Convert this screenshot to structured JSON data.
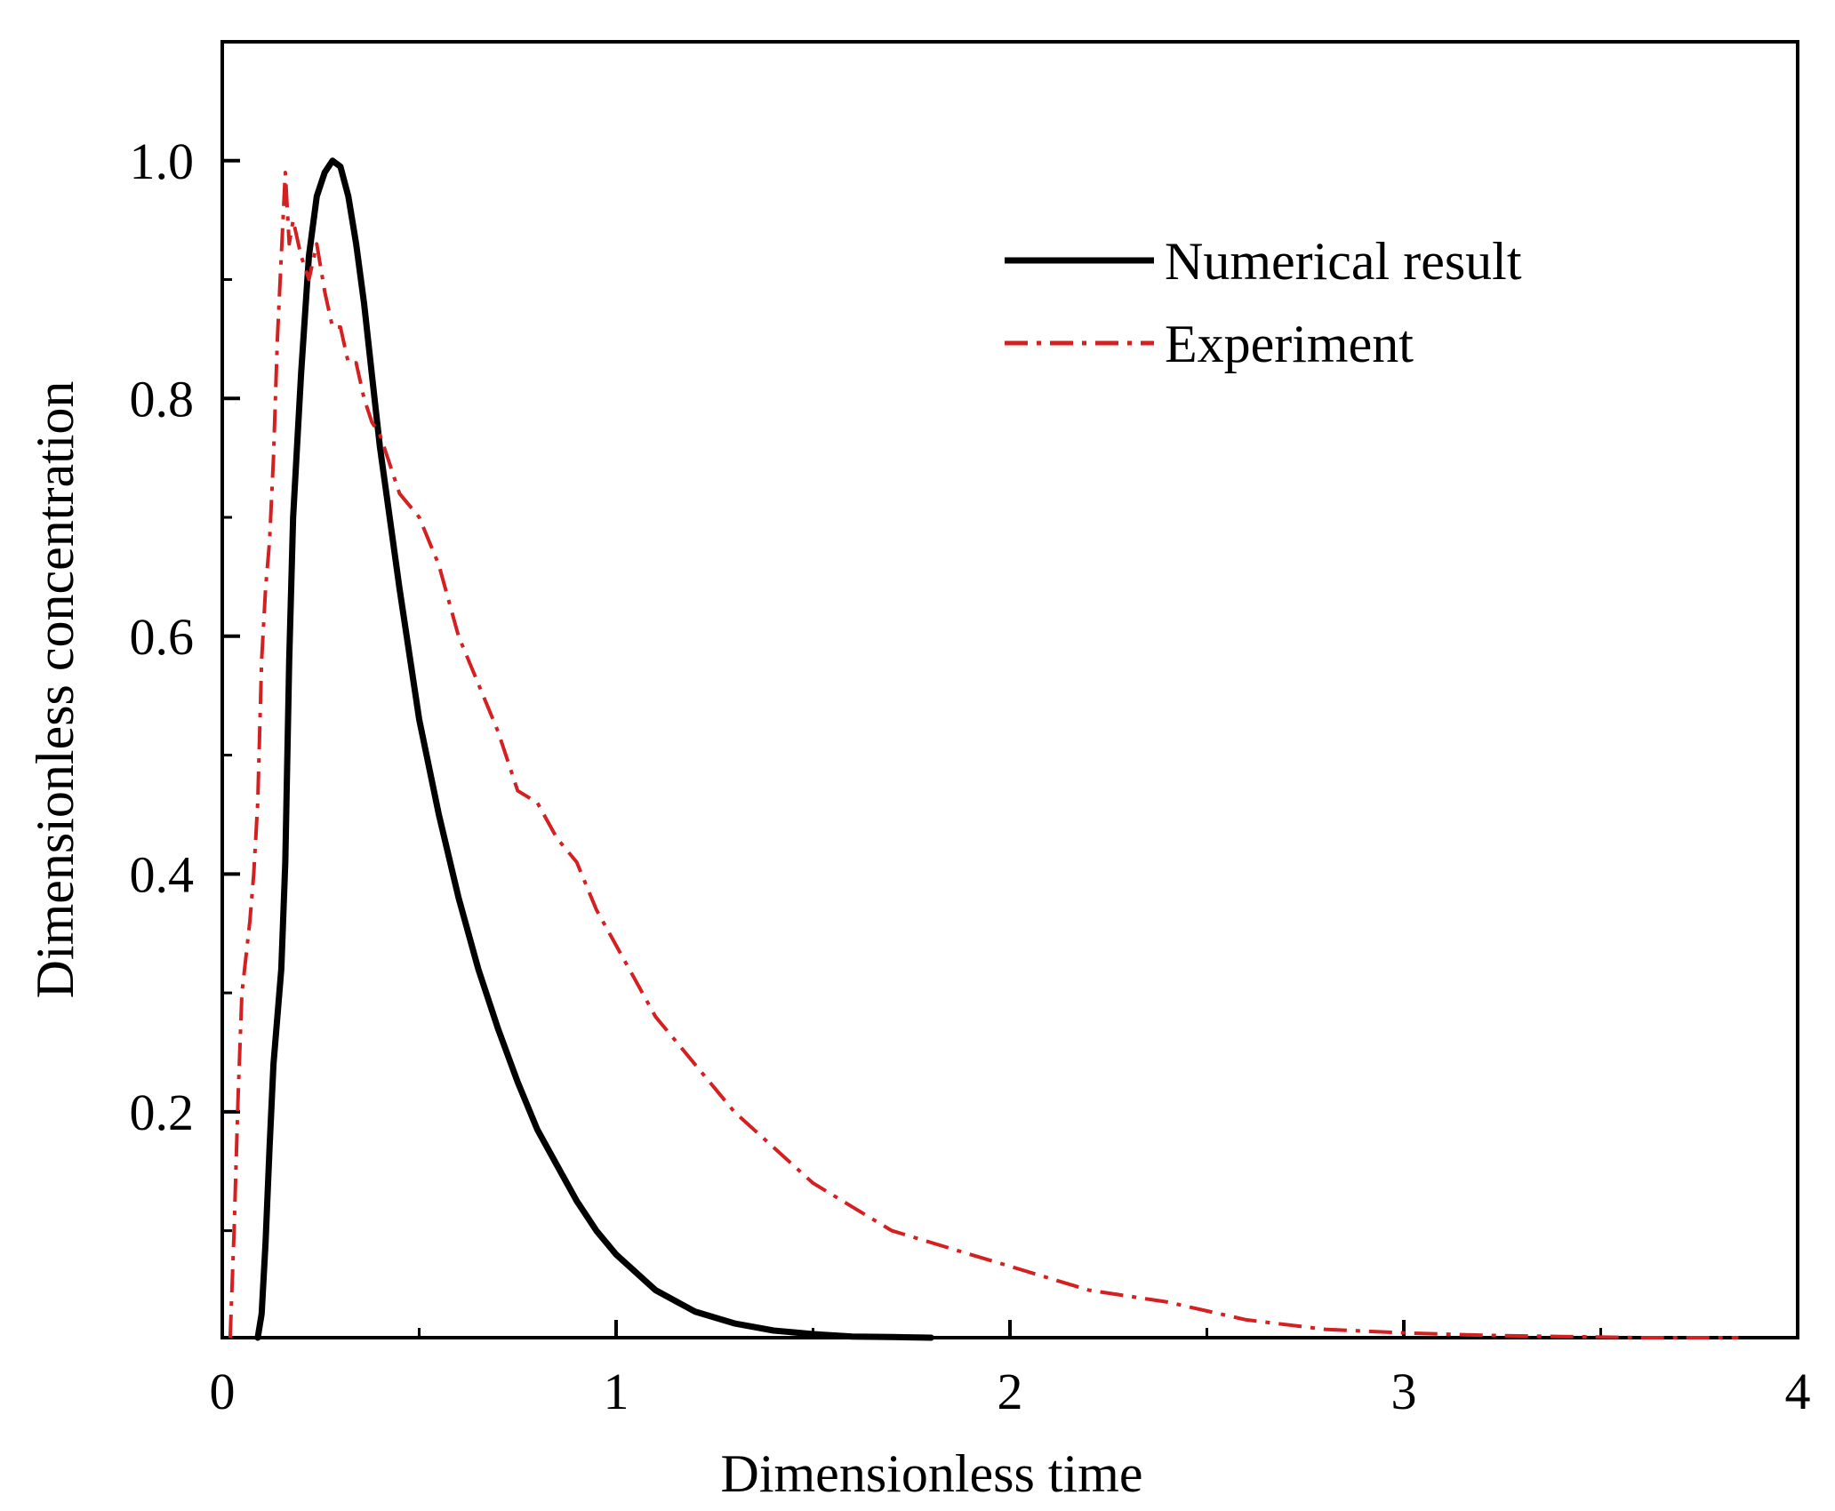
{
  "chart_data": {
    "type": "line",
    "title": "",
    "xlabel": "Dimensionless time",
    "ylabel": "Dimensionless concentration",
    "xlim": [
      0,
      4
    ],
    "ylim": [
      0.01,
      1.1
    ],
    "xticks": [
      0,
      1,
      2,
      3,
      4
    ],
    "xtick_labels": [
      "0",
      "1",
      "2",
      "3",
      "4"
    ],
    "yticks": [
      0.2,
      0.4,
      0.6,
      0.8,
      1.0
    ],
    "ytick_labels": [
      "0.2",
      "0.4",
      "0.6",
      "0.8",
      "1.0"
    ],
    "grid": false,
    "legend_position": "top-right",
    "series": [
      {
        "name": "Numerical result",
        "color": "#000000",
        "style": "solid",
        "x": [
          0.09,
          0.1,
          0.11,
          0.12,
          0.13,
          0.14,
          0.15,
          0.16,
          0.17,
          0.18,
          0.2,
          0.22,
          0.24,
          0.26,
          0.28,
          0.3,
          0.32,
          0.34,
          0.36,
          0.38,
          0.4,
          0.45,
          0.5,
          0.55,
          0.6,
          0.65,
          0.7,
          0.75,
          0.8,
          0.85,
          0.9,
          0.95,
          1.0,
          1.1,
          1.2,
          1.3,
          1.4,
          1.5,
          1.6,
          1.7,
          1.8
        ],
        "y": [
          0.01,
          0.03,
          0.09,
          0.17,
          0.24,
          0.28,
          0.32,
          0.41,
          0.58,
          0.7,
          0.82,
          0.92,
          0.97,
          0.99,
          1.0,
          0.995,
          0.97,
          0.93,
          0.88,
          0.82,
          0.76,
          0.64,
          0.53,
          0.45,
          0.38,
          0.32,
          0.27,
          0.225,
          0.185,
          0.155,
          0.125,
          0.1,
          0.08,
          0.05,
          0.032,
          0.022,
          0.016,
          0.013,
          0.011,
          0.0105,
          0.01
        ]
      },
      {
        "name": "Experiment",
        "color": "#d42020",
        "style": "dashdot",
        "x": [
          0.02,
          0.03,
          0.04,
          0.05,
          0.06,
          0.07,
          0.08,
          0.09,
          0.1,
          0.11,
          0.12,
          0.13,
          0.14,
          0.15,
          0.16,
          0.17,
          0.18,
          0.2,
          0.22,
          0.24,
          0.26,
          0.28,
          0.3,
          0.32,
          0.34,
          0.36,
          0.38,
          0.4,
          0.45,
          0.5,
          0.55,
          0.6,
          0.65,
          0.7,
          0.75,
          0.8,
          0.85,
          0.9,
          0.95,
          1.0,
          1.05,
          1.1,
          1.2,
          1.3,
          1.4,
          1.5,
          1.6,
          1.7,
          1.8,
          1.9,
          2.0,
          2.2,
          2.4,
          2.6,
          2.8,
          3.0,
          3.2,
          3.4,
          3.6,
          3.85
        ],
        "y": [
          0.01,
          0.1,
          0.21,
          0.3,
          0.33,
          0.36,
          0.4,
          0.46,
          0.58,
          0.64,
          0.68,
          0.75,
          0.85,
          0.92,
          0.99,
          0.93,
          0.95,
          0.92,
          0.9,
          0.93,
          0.89,
          0.86,
          0.86,
          0.83,
          0.83,
          0.8,
          0.78,
          0.77,
          0.72,
          0.7,
          0.66,
          0.6,
          0.56,
          0.52,
          0.47,
          0.46,
          0.43,
          0.41,
          0.37,
          0.34,
          0.31,
          0.28,
          0.24,
          0.2,
          0.17,
          0.14,
          0.12,
          0.1,
          0.09,
          0.08,
          0.07,
          0.05,
          0.04,
          0.025,
          0.017,
          0.014,
          0.012,
          0.011,
          0.01,
          0.01
        ]
      }
    ]
  }
}
